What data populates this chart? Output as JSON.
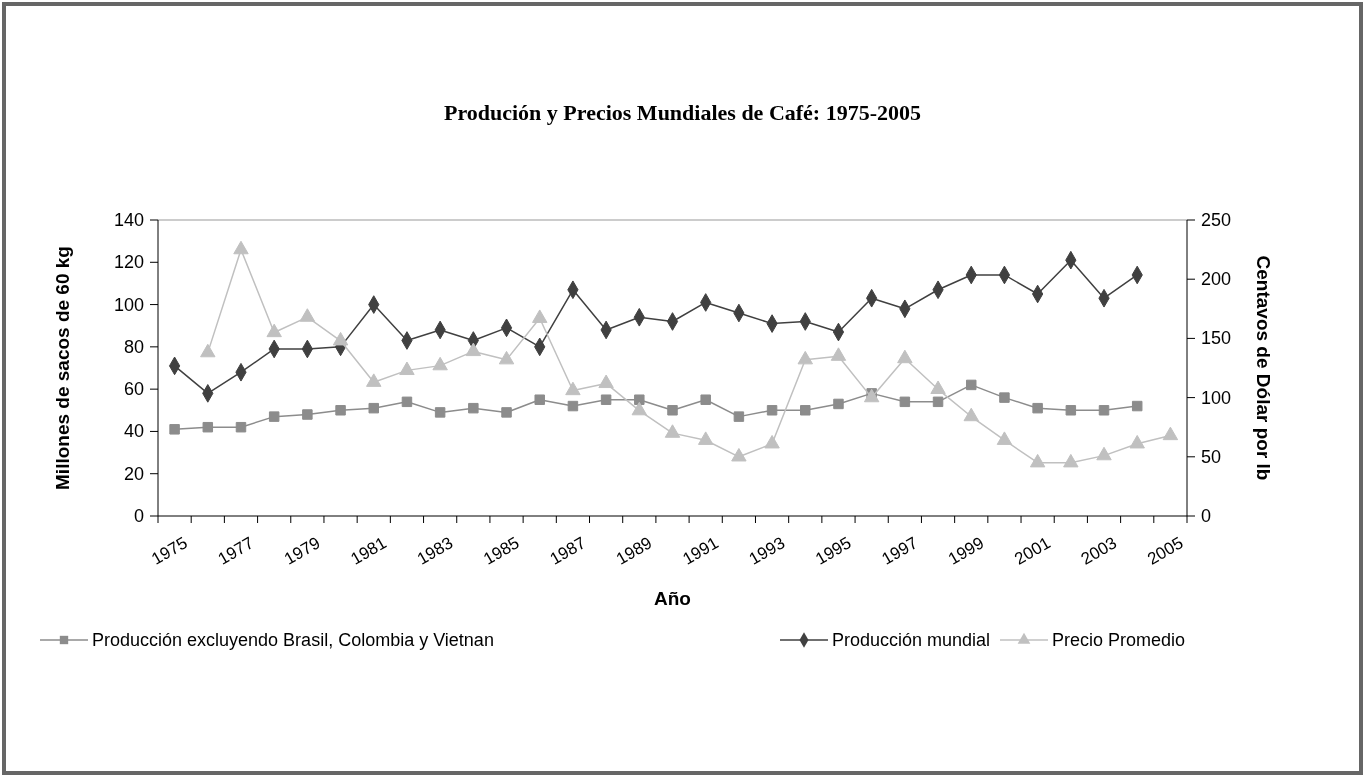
{
  "chart_data": {
    "type": "line",
    "title": "Produción y Precios Mundiales de Café: 1975-2005",
    "xlabel": "Año",
    "ylabel": "Millones de sacos de 60 kg",
    "y2label": "Centavos de Dólar por lb",
    "categories": [
      "1975",
      null,
      "1977",
      null,
      "1979",
      null,
      "1981",
      null,
      "1983",
      null,
      "1985",
      null,
      "1987",
      null,
      "1989",
      null,
      "1991",
      null,
      "1993",
      null,
      "1995",
      null,
      "1997",
      null,
      "1999",
      null,
      "2001",
      null,
      "2003",
      null,
      "2005"
    ],
    "ylim": [
      0,
      140
    ],
    "yticks": [
      0,
      20,
      40,
      60,
      80,
      100,
      120,
      140
    ],
    "y2lim": [
      0,
      250
    ],
    "y2ticks": [
      0,
      50,
      100,
      150,
      200,
      250
    ],
    "legend": "bottom",
    "grid": false,
    "line_style": "solid",
    "series": [
      {
        "name": "Producción excluyendo Brasil, Colombia y Vietnan",
        "color": "#8c8c8c",
        "marker": "square",
        "values": [
          41,
          42,
          42,
          47,
          48,
          50,
          51,
          54,
          49,
          51,
          49,
          55,
          52,
          55,
          55,
          50,
          55,
          47,
          50,
          50,
          53,
          58,
          54,
          54,
          62,
          56,
          51,
          50,
          50,
          52,
          null
        ]
      },
      {
        "name": "Producción mundial",
        "color": "#404040",
        "marker": "diamond",
        "values": [
          71,
          58,
          68,
          79,
          79,
          80,
          100,
          83,
          88,
          83,
          89,
          80,
          107,
          88,
          94,
          92,
          101,
          96,
          91,
          92,
          87,
          103,
          98,
          107,
          114,
          114,
          105,
          121,
          103,
          114,
          null
        ]
      },
      {
        "name": "Precio Promedio",
        "color": "#c0c0c0",
        "marker": "triangle",
        "axis": "y2",
        "values": [
          null,
          138,
          225,
          155,
          168,
          148,
          113,
          123,
          127,
          139,
          132,
          167,
          106,
          112,
          89,
          70,
          64,
          50,
          61,
          132,
          135,
          100,
          133,
          107,
          84,
          64,
          45,
          45,
          51,
          61,
          68
        ]
      }
    ]
  }
}
